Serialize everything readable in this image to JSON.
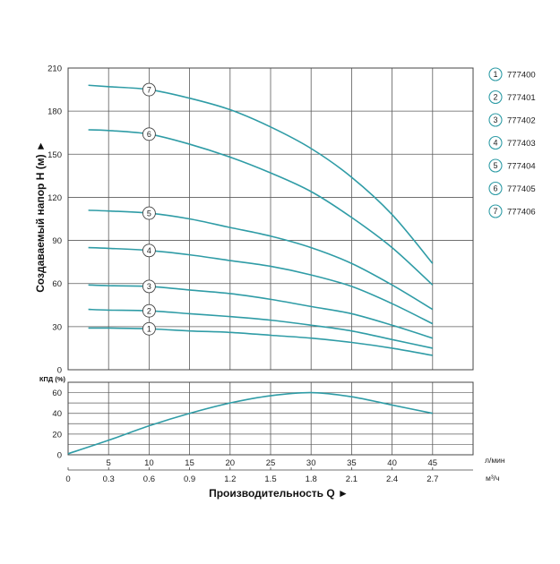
{
  "colors": {
    "curve": "#2f9ca6",
    "grid": "#5c5c5c",
    "frame": "#444444",
    "marker_fill": "#ffffff"
  },
  "x_axis": {
    "label": "Производительность Q ►",
    "xlim": [
      0,
      50
    ],
    "primary": {
      "unit": "л/мин",
      "ticks": [
        5,
        10,
        15,
        20,
        25,
        30,
        35,
        40,
        45
      ]
    },
    "secondary": {
      "unit": "м³/ч",
      "ticks": [
        "0",
        "0.3",
        "0.6",
        "0.9",
        "1.2",
        "1.5",
        "1.8",
        "2.1",
        "2.4",
        "2.7"
      ]
    }
  },
  "chart_data": [
    {
      "type": "line",
      "ylabel": "Создаваемый напор H (м) ►",
      "ylim": [
        0,
        210
      ],
      "yticks": [
        0,
        30,
        60,
        90,
        120,
        150,
        180,
        210
      ],
      "grid": true,
      "legend": "right",
      "x": [
        2.5,
        5,
        10,
        15,
        20,
        25,
        30,
        35,
        40,
        45
      ],
      "series": [
        {
          "name": "777400",
          "marker": "1",
          "values": [
            29,
            29,
            28.5,
            27,
            26,
            24,
            22,
            19,
            15,
            10
          ]
        },
        {
          "name": "777401",
          "marker": "2",
          "values": [
            42,
            41.5,
            41,
            39,
            37,
            34.5,
            31,
            27,
            21,
            15
          ]
        },
        {
          "name": "777402",
          "marker": "3",
          "values": [
            59,
            58.5,
            58,
            55.5,
            53,
            49,
            44,
            39,
            31,
            22
          ]
        },
        {
          "name": "777403",
          "marker": "4",
          "values": [
            85,
            84.5,
            83,
            80,
            76,
            72,
            66,
            58,
            46,
            32
          ]
        },
        {
          "name": "777404",
          "marker": "5",
          "values": [
            111,
            110.5,
            109,
            105,
            99,
            93,
            85,
            74,
            59,
            42
          ]
        },
        {
          "name": "777405",
          "marker": "6",
          "values": [
            167,
            166.5,
            164,
            157,
            148,
            137,
            124,
            106,
            85,
            59
          ]
        },
        {
          "name": "777406",
          "marker": "7",
          "values": [
            198,
            197,
            195,
            189,
            181,
            169,
            154,
            134,
            108,
            74
          ]
        }
      ]
    },
    {
      "type": "line",
      "ylabel": "КПД (%)",
      "ylim": [
        0,
        70
      ],
      "yticks": [
        0,
        20,
        40,
        60
      ],
      "ygrid": [
        10,
        20,
        30,
        40,
        50,
        60
      ],
      "grid": true,
      "x": [
        0,
        5,
        10,
        15,
        20,
        25,
        30,
        35,
        40,
        45
      ],
      "series": [
        {
          "values": [
            1,
            14,
            28,
            40,
            50,
            57,
            60,
            56,
            48,
            40
          ]
        }
      ]
    }
  ]
}
